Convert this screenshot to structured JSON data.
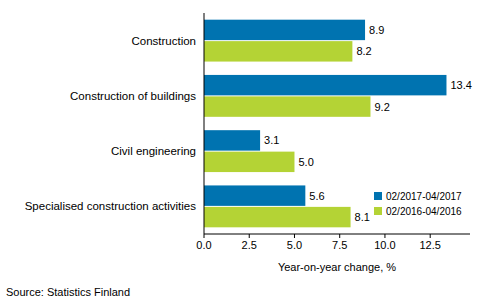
{
  "chart_data": {
    "type": "bar",
    "orientation": "horizontal",
    "categories": [
      "Construction",
      "Construction of buildings",
      "Civil engineering",
      "Specialised construction activities"
    ],
    "series": [
      {
        "name": "02/2017-04/2017",
        "color": "#0073b0",
        "values": [
          8.9,
          13.4,
          3.1,
          5.6
        ],
        "value_labels": [
          "8.9",
          "13.4",
          "3.1",
          "5.6"
        ]
      },
      {
        "name": "02/2016-04/2016",
        "color": "#b4d335",
        "values": [
          8.2,
          9.2,
          5.0,
          8.1
        ],
        "value_labels": [
          "8.2",
          "9.2",
          "5.0",
          "8.1"
        ]
      }
    ],
    "xlabel": "Year-on-year change, %",
    "source": "Source: Statistics Finland",
    "xlim": [
      0,
      14.7
    ],
    "xticks": [
      {
        "value": 0,
        "label": "0.0"
      },
      2.5,
      {
        "value": 5,
        "label": "5.0"
      },
      7.5,
      {
        "value": 10,
        "label": "10.0"
      },
      12.5
    ],
    "grid": false,
    "legend": "lower right",
    "data_labels": true
  }
}
